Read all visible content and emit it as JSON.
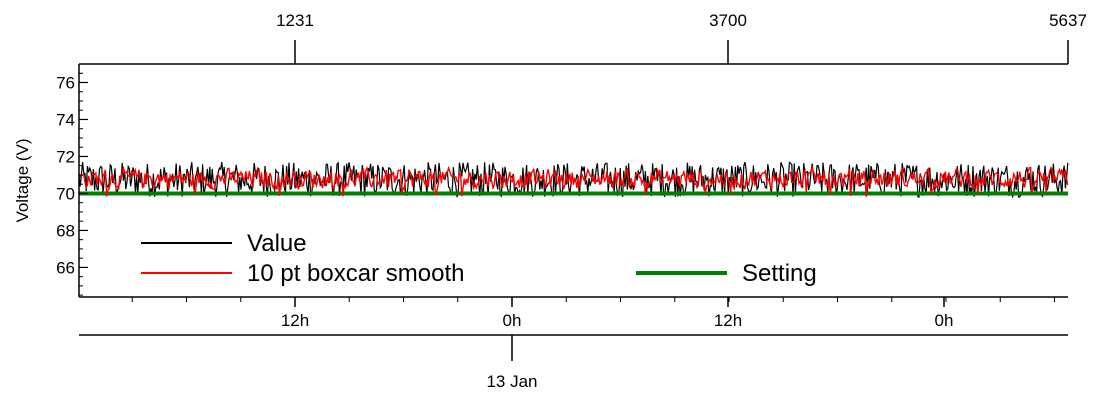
{
  "chart_data": {
    "type": "line",
    "title": "",
    "ylabel": "Voltage (V)",
    "ylim": [
      64.4,
      77
    ],
    "yticks_labeled": [
      66,
      68,
      70,
      72,
      74,
      76
    ],
    "top_axis": {
      "labels": [
        "1231",
        "3700",
        "5637"
      ]
    },
    "bottom_axis": {
      "labels": [
        "12h",
        "0h",
        "12h",
        "0h"
      ]
    },
    "date_axis": {
      "labels": [
        "13 Jan"
      ]
    },
    "legend": {
      "placement": "bottom-left",
      "entries": [
        {
          "label": "Value",
          "color": "#000000"
        },
        {
          "label": "10 pt boxcar smooth",
          "color": "#ff0000"
        },
        {
          "label": "Setting",
          "color": "#008000"
        }
      ]
    },
    "series": [
      {
        "name": "Value",
        "color": "#000000",
        "style": "noise",
        "mean": 70.8,
        "min": 69.8,
        "max": 71.7
      },
      {
        "name": "10 pt boxcar smooth",
        "color": "#ff0000",
        "style": "noise",
        "mean": 70.8,
        "min": 69.8,
        "max": 71.4
      },
      {
        "name": "Setting",
        "color": "#008000",
        "style": "constant",
        "value": 70.0
      }
    ],
    "grid": false
  }
}
